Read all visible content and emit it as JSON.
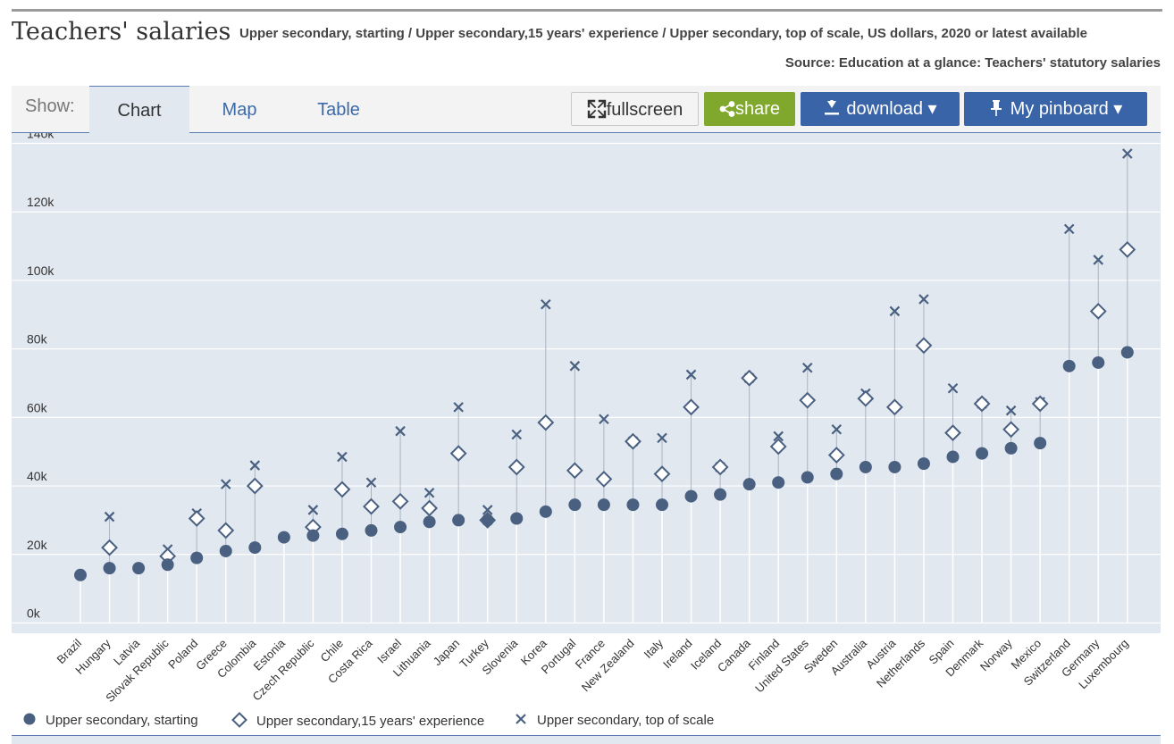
{
  "header": {
    "title": "Teachers' salaries",
    "subtitle": "Upper secondary, starting / Upper secondary,15 years' experience / Upper secondary, top of scale, US dollars, 2020 or latest available",
    "source": "Source: Education at a glance: Teachers' statutory salaries"
  },
  "toolbar": {
    "show_label": "Show:",
    "tabs": [
      "Chart",
      "Map",
      "Table"
    ],
    "active_tab": "Chart",
    "fullscreen_label": "fullscreen",
    "share_label": "share",
    "download_label": "download ▾",
    "pinboard_label": "My pinboard ▾"
  },
  "colors": {
    "accent": "#3a64a8",
    "share": "#80a82c",
    "series": "#4a6080",
    "plot_bg": "#e1e8f0"
  },
  "chart_data": {
    "type": "scatter",
    "ylim": [
      -3000,
      143000
    ],
    "yticks": [
      0,
      20000,
      40000,
      60000,
      80000,
      100000,
      120000,
      140000
    ],
    "ytick_labels": [
      "0k",
      "20k",
      "40k",
      "60k",
      "80k",
      "100k",
      "120k",
      "140k"
    ],
    "grid": true,
    "legend_position": "bottom-left",
    "categories": [
      "Brazil",
      "Hungary",
      "Latvia",
      "Slovak Republic",
      "Poland",
      "Greece",
      "Colombia",
      "Estonia",
      "Czech Republic",
      "Chile",
      "Costa Rica",
      "Israel",
      "Lithuania",
      "Japan",
      "Turkey",
      "Slovenia",
      "Korea",
      "Portugal",
      "France",
      "New Zealand",
      "Italy",
      "Ireland",
      "Iceland",
      "Canada",
      "Finland",
      "United States",
      "Sweden",
      "Australia",
      "Austria",
      "Netherlands",
      "Spain",
      "Denmark",
      "Norway",
      "Mexico",
      "Switzerland",
      "Germany",
      "Luxembourg"
    ],
    "series": [
      {
        "name": "Upper secondary, starting",
        "marker": "circle",
        "values": [
          14000,
          16000,
          16000,
          17000,
          19000,
          21000,
          22000,
          25000,
          25500,
          26000,
          27000,
          28000,
          29500,
          30000,
          30000,
          30500,
          32500,
          34500,
          34500,
          34500,
          34500,
          37000,
          37500,
          40500,
          41000,
          42500,
          43500,
          45500,
          45500,
          46500,
          48500,
          49500,
          51000,
          52500,
          75000,
          76000,
          79000
        ]
      },
      {
        "name": "Upper secondary,15 years' experience",
        "marker": "diamond",
        "values": [
          null,
          22000,
          null,
          19500,
          30500,
          27000,
          40000,
          null,
          28000,
          39000,
          34000,
          35500,
          33500,
          49500,
          30000,
          45500,
          58500,
          44500,
          42000,
          53000,
          43500,
          63000,
          45500,
          71500,
          51500,
          65000,
          49000,
          65500,
          63000,
          81000,
          55500,
          64000,
          56500,
          64000,
          null,
          91000,
          109000
        ]
      },
      {
        "name": "Upper secondary, top of scale",
        "marker": "x",
        "values": [
          null,
          31000,
          null,
          21500,
          32000,
          40500,
          46000,
          null,
          33000,
          48500,
          41000,
          56000,
          38000,
          63000,
          33000,
          55000,
          93000,
          75000,
          59500,
          53000,
          54000,
          72500,
          45500,
          71500,
          54500,
          74500,
          56500,
          67000,
          91000,
          94500,
          68500,
          64000,
          62000,
          64500,
          115000,
          106000,
          137000
        ]
      }
    ]
  }
}
